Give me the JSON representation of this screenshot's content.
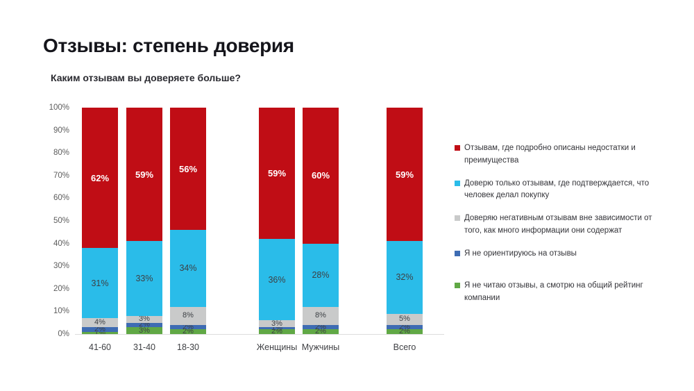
{
  "header": {
    "title": "Отзывы: степень доверия",
    "subtitle": "Каким отзывам вы доверяете больше?"
  },
  "chart_data": {
    "type": "bar",
    "stacked": true,
    "orientation": "vertical",
    "title": "Каким отзывам вы доверяете больше?",
    "categories": [
      "41-60",
      "31-40",
      "18-30",
      "Женщины",
      "Мужчины",
      "Всего"
    ],
    "series": [
      {
        "name": "Отзывам, где подробно описаны недостатки и преимущества",
        "color": "#C00D15",
        "values": [
          62,
          59,
          56,
          59,
          60,
          59
        ]
      },
      {
        "name": "Доверю только отзывам, где подтверждается, что человек делал покупку",
        "color": "#2ABCE9",
        "values": [
          31,
          33,
          34,
          36,
          28,
          32
        ]
      },
      {
        "name": "Доверяю негативным отзывам вне зависимости от того, как много информации они содержат",
        "color": "#C9CACA",
        "values": [
          4,
          3,
          8,
          3,
          8,
          5
        ]
      },
      {
        "name": "Я не ориентируюсь на отзывы",
        "color": "#3E6CB3",
        "values": [
          2,
          2,
          2,
          1,
          2,
          2
        ]
      },
      {
        "name": "Я не читаю отзывы, а смотрю на общий рейтинг компании",
        "color": "#60A845",
        "values": [
          1,
          3,
          2,
          2,
          2,
          2
        ]
      }
    ],
    "value_suffix": "%",
    "ylim": [
      0,
      100
    ],
    "yticks": [
      "100%",
      "90%",
      "80%",
      "70%",
      "60%",
      "50%",
      "40%",
      "30%",
      "20%",
      "10%",
      "0%"
    ],
    "grid": false,
    "legend_position": "right"
  }
}
